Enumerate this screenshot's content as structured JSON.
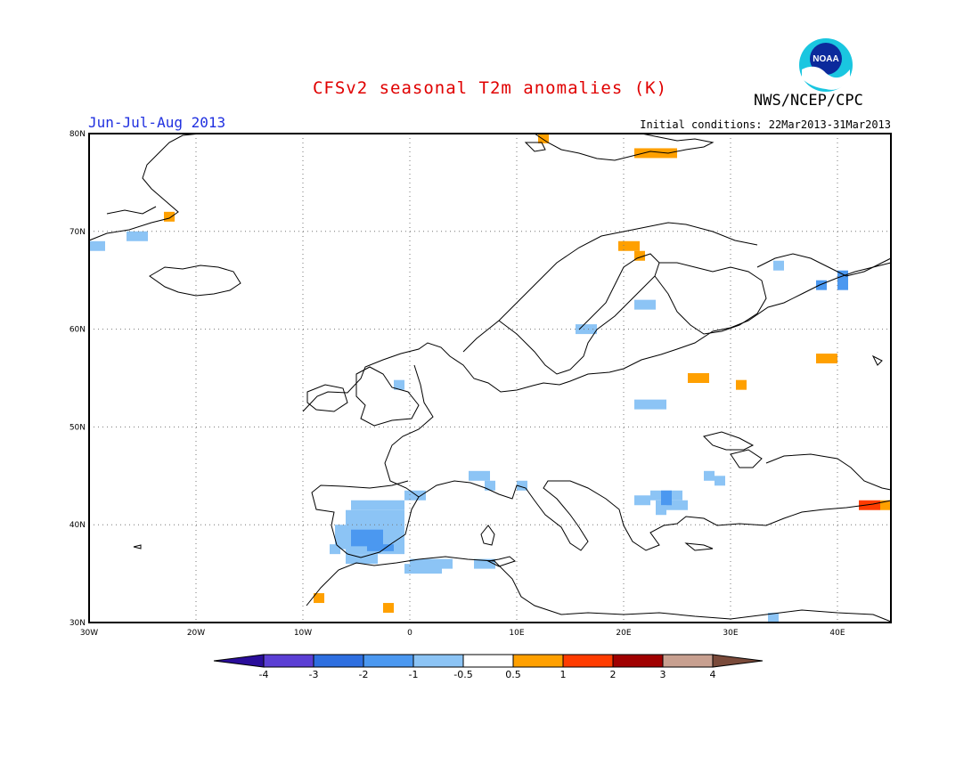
{
  "title": "CFSv2 seasonal T2m anomalies (K)",
  "agency": "NWS/NCEP/CPC",
  "logo_text": "NOAA",
  "season": "Jun-Jul-Aug 2013",
  "initial_conditions": "Initial conditions: 22Mar2013-31Mar2013",
  "map": {
    "lon_range": [
      -30,
      45
    ],
    "lat_range": [
      30,
      80
    ],
    "lon_ticks": [
      "30W",
      "20W",
      "10W",
      "0",
      "10E",
      "20E",
      "30E",
      "40E"
    ],
    "lat_ticks": [
      "30N",
      "40N",
      "50N",
      "60N",
      "70N",
      "80N"
    ]
  },
  "colorbar": {
    "labels": [
      "-4",
      "-3",
      "-2",
      "-1",
      "-0.5",
      "0.5",
      "1",
      "2",
      "3",
      "4"
    ],
    "colors": [
      "#2a0d9a",
      "#5b3fd4",
      "#2e6fe0",
      "#4b98f0",
      "#8cc4f5",
      "#ffffff",
      "#ffa000",
      "#ff3c00",
      "#a00000",
      "#c8a090",
      "#7a4a3a"
    ]
  },
  "anomalies": [
    {
      "lon0": -30,
      "lat0": 68,
      "lon1": -28.5,
      "lat1": 69,
      "cat": "-1"
    },
    {
      "lon0": -26.5,
      "lat0": 69,
      "lon1": -24.5,
      "lat1": 70,
      "cat": "-1"
    },
    {
      "lon0": -23,
      "lat0": 71,
      "lon1": -22,
      "lat1": 72,
      "cat": "0.5"
    },
    {
      "lon0": 12,
      "lat0": 79,
      "lon1": 13,
      "lat1": 80,
      "cat": "0.5"
    },
    {
      "lon0": 21,
      "lat0": 77.5,
      "lon1": 25,
      "lat1": 78.5,
      "cat": "0.5"
    },
    {
      "lon0": 19.5,
      "lat0": 68,
      "lon1": 21.5,
      "lat1": 69,
      "cat": "0.5"
    },
    {
      "lon0": 21,
      "lat0": 67,
      "lon1": 22,
      "lat1": 68,
      "cat": "0.5"
    },
    {
      "lon0": 34,
      "lat0": 66,
      "lon1": 35,
      "lat1": 67,
      "cat": "-1"
    },
    {
      "lon0": 38,
      "lat0": 64,
      "lon1": 39,
      "lat1": 65,
      "cat": "-2"
    },
    {
      "lon0": 40,
      "lat0": 64,
      "lon1": 41,
      "lat1": 66,
      "cat": "-2"
    },
    {
      "lon0": 21,
      "lat0": 62,
      "lon1": 23,
      "lat1": 63,
      "cat": "-1"
    },
    {
      "lon0": 15.5,
      "lat0": 59.5,
      "lon1": 17.5,
      "lat1": 60.5,
      "cat": "-1"
    },
    {
      "lon0": 38,
      "lat0": 56.5,
      "lon1": 40,
      "lat1": 57.5,
      "cat": "0.5"
    },
    {
      "lon0": 26,
      "lat0": 54.5,
      "lon1": 28,
      "lat1": 55.5,
      "cat": "0.5"
    },
    {
      "lon0": 30.5,
      "lat0": 53.8,
      "lon1": 31.5,
      "lat1": 54.8,
      "cat": "0.5"
    },
    {
      "lon0": -1.5,
      "lat0": 53.8,
      "lon1": -0.5,
      "lat1": 54.8,
      "cat": "-1"
    },
    {
      "lon0": 21,
      "lat0": 51.8,
      "lon1": 24,
      "lat1": 52.8,
      "cat": "-1"
    },
    {
      "lon0": 28.5,
      "lat0": 44,
      "lon1": 29.5,
      "lat1": 45,
      "cat": "-1"
    },
    {
      "lon0": 27.5,
      "lat0": 44.5,
      "lon1": 28.5,
      "lat1": 45.5,
      "cat": "-1"
    },
    {
      "lon0": 22.5,
      "lat0": 42.5,
      "lon1": 25.5,
      "lat1": 43.5,
      "cat": "-1"
    },
    {
      "lon0": 21,
      "lat0": 42,
      "lon1": 22.5,
      "lat1": 43,
      "cat": "-1"
    },
    {
      "lon0": 23,
      "lat0": 41.5,
      "lon1": 26,
      "lat1": 42.5,
      "cat": "-1"
    },
    {
      "lon0": 23.5,
      "lat0": 42,
      "lon1": 24.5,
      "lat1": 43.5,
      "cat": "-2"
    },
    {
      "lon0": 23,
      "lat0": 41,
      "lon1": 24,
      "lat1": 42,
      "cat": "-1"
    },
    {
      "lon0": 5.5,
      "lat0": 44.5,
      "lon1": 7.5,
      "lat1": 45.5,
      "cat": "-1"
    },
    {
      "lon0": 7,
      "lat0": 43.5,
      "lon1": 8,
      "lat1": 44.5,
      "cat": "-1"
    },
    {
      "lon0": 10,
      "lat0": 43.5,
      "lon1": 11,
      "lat1": 44.5,
      "cat": "-1"
    },
    {
      "lon0": -0.5,
      "lat0": 42.5,
      "lon1": 1.5,
      "lat1": 43.5,
      "cat": "-1"
    },
    {
      "lon0": -5.5,
      "lat0": 41.5,
      "lon1": -0.5,
      "lat1": 42.5,
      "cat": "-1"
    },
    {
      "lon0": -6,
      "lat0": 37,
      "lon1": -0.5,
      "lat1": 41.5,
      "cat": "-1"
    },
    {
      "lon0": -7,
      "lat0": 37.5,
      "lon1": -6,
      "lat1": 40,
      "cat": "-1"
    },
    {
      "lon0": -7.5,
      "lat0": 37,
      "lon1": -6.5,
      "lat1": 38,
      "cat": "-1"
    },
    {
      "lon0": -5.5,
      "lat0": 37.8,
      "lon1": -2.5,
      "lat1": 39.5,
      "cat": "-2"
    },
    {
      "lon0": -4,
      "lat0": 37.3,
      "lon1": -1.5,
      "lat1": 38,
      "cat": "-2"
    },
    {
      "lon0": -6,
      "lat0": 36,
      "lon1": -3,
      "lat1": 37,
      "cat": "-1"
    },
    {
      "lon0": 0,
      "lat0": 35.5,
      "lon1": 4,
      "lat1": 36.5,
      "cat": "-1"
    },
    {
      "lon0": -0.5,
      "lat0": 35,
      "lon1": 3,
      "lat1": 36,
      "cat": "-1"
    },
    {
      "lon0": 6,
      "lat0": 35.5,
      "lon1": 8,
      "lat1": 36.5,
      "cat": "-1"
    },
    {
      "lon0": -9,
      "lat0": 32,
      "lon1": -8,
      "lat1": 33,
      "cat": "0.5"
    },
    {
      "lon0": -2.5,
      "lat0": 31,
      "lon1": -1.5,
      "lat1": 32,
      "cat": "0.5"
    },
    {
      "lon0": 33.5,
      "lat0": 30,
      "lon1": 34.5,
      "lat1": 31,
      "cat": "-1"
    },
    {
      "lon0": 42,
      "lat0": 41.5,
      "lon1": 44,
      "lat1": 42.5,
      "cat": "1"
    },
    {
      "lon0": 44,
      "lat0": 41.5,
      "lon1": 45,
      "lat1": 42.5,
      "cat": "0.5"
    }
  ]
}
